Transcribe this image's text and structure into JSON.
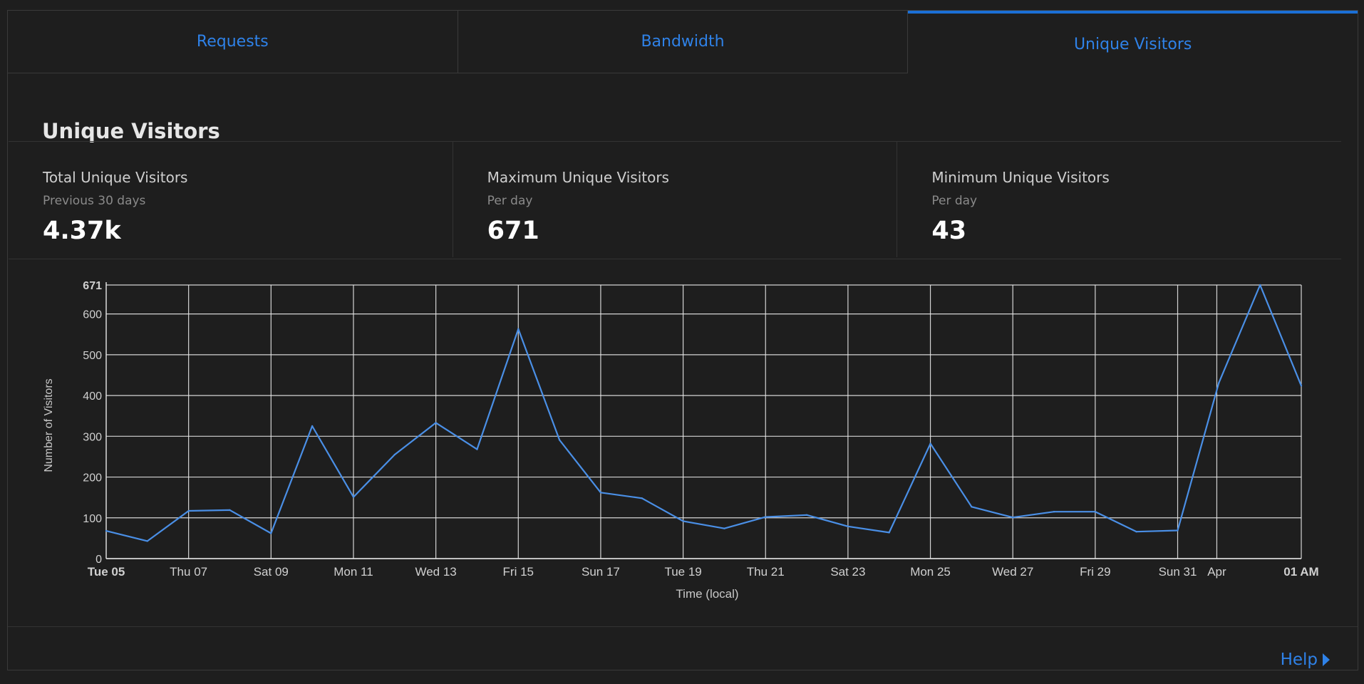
{
  "tabs": [
    {
      "label": "Requests",
      "active": false
    },
    {
      "label": "Bandwidth",
      "active": false
    },
    {
      "label": "Unique Visitors",
      "active": true
    }
  ],
  "section_title": "Unique Visitors",
  "stats": [
    {
      "label": "Total Unique Visitors",
      "sub": "Previous 30 days",
      "value": "4.37k"
    },
    {
      "label": "Maximum Unique Visitors",
      "sub": "Per day",
      "value": "671"
    },
    {
      "label": "Minimum Unique Visitors",
      "sub": "Per day",
      "value": "43"
    }
  ],
  "help": {
    "label": "Help",
    "icon": "caret-right-icon"
  },
  "colors": {
    "accent": "#2f82e8",
    "line": "#4a8fe6",
    "background": "#1e1e1e",
    "grid": "#e8e8e8"
  },
  "chart_data": {
    "type": "line",
    "xlabel": "Time (local)",
    "ylabel": "Number of Visitors",
    "ylim": [
      0,
      671
    ],
    "yticks": [
      0,
      100,
      200,
      300,
      400,
      500,
      600,
      671
    ],
    "ytick_labels": [
      "0",
      "100",
      "200",
      "300",
      "400",
      "500",
      "600",
      "671"
    ],
    "grid": true,
    "x_start": "2024-03-05",
    "x_end": "2024-04-03",
    "x": [
      "Mar 05",
      "Mar 06",
      "Mar 07",
      "Mar 08",
      "Mar 09",
      "Mar 10",
      "Mar 11",
      "Mar 12",
      "Mar 13",
      "Mar 14",
      "Mar 15",
      "Mar 16",
      "Mar 17",
      "Mar 18",
      "Mar 19",
      "Mar 20",
      "Mar 21",
      "Mar 22",
      "Mar 23",
      "Mar 24",
      "Mar 25",
      "Mar 26",
      "Mar 27",
      "Mar 28",
      "Mar 29",
      "Mar 30",
      "Mar 31",
      "Apr 01",
      "Apr 02",
      "Apr 03"
    ],
    "series": [
      {
        "values": [
          68,
          43,
          117,
          119,
          62,
          325,
          151,
          255,
          333,
          268,
          563,
          291,
          162,
          148,
          92,
          74,
          102,
          107,
          79,
          64,
          282,
          127,
          101,
          115,
          115,
          66,
          69,
          431,
          671,
          424
        ]
      }
    ],
    "xticks": [
      {
        "label": "Tue 05",
        "bold": true,
        "date": "Mar 05"
      },
      {
        "label": "Thu 07",
        "bold": false,
        "date": "Mar 07"
      },
      {
        "label": "Sat 09",
        "bold": false,
        "date": "Mar 09"
      },
      {
        "label": "Mon 11",
        "bold": false,
        "date": "Mar 11"
      },
      {
        "label": "Wed 13",
        "bold": false,
        "date": "Mar 13"
      },
      {
        "label": "Fri 15",
        "bold": false,
        "date": "Mar 15"
      },
      {
        "label": "Sun 17",
        "bold": false,
        "date": "Mar 17"
      },
      {
        "label": "Tue 19",
        "bold": false,
        "date": "Mar 19"
      },
      {
        "label": "Thu 21",
        "bold": false,
        "date": "Mar 21"
      },
      {
        "label": "Sat 23",
        "bold": false,
        "date": "Mar 23"
      },
      {
        "label": "Mon 25",
        "bold": false,
        "date": "Mar 25"
      },
      {
        "label": "Wed 27",
        "bold": false,
        "date": "Mar 27"
      },
      {
        "label": "Fri 29",
        "bold": false,
        "date": "Mar 29"
      },
      {
        "label": "Sun 31",
        "bold": false,
        "date": "Mar 31"
      },
      {
        "label": "Apr",
        "bold": false,
        "date": "Apr 01"
      },
      {
        "label": "01 AM",
        "bold": true,
        "date": "Apr 03"
      }
    ]
  }
}
